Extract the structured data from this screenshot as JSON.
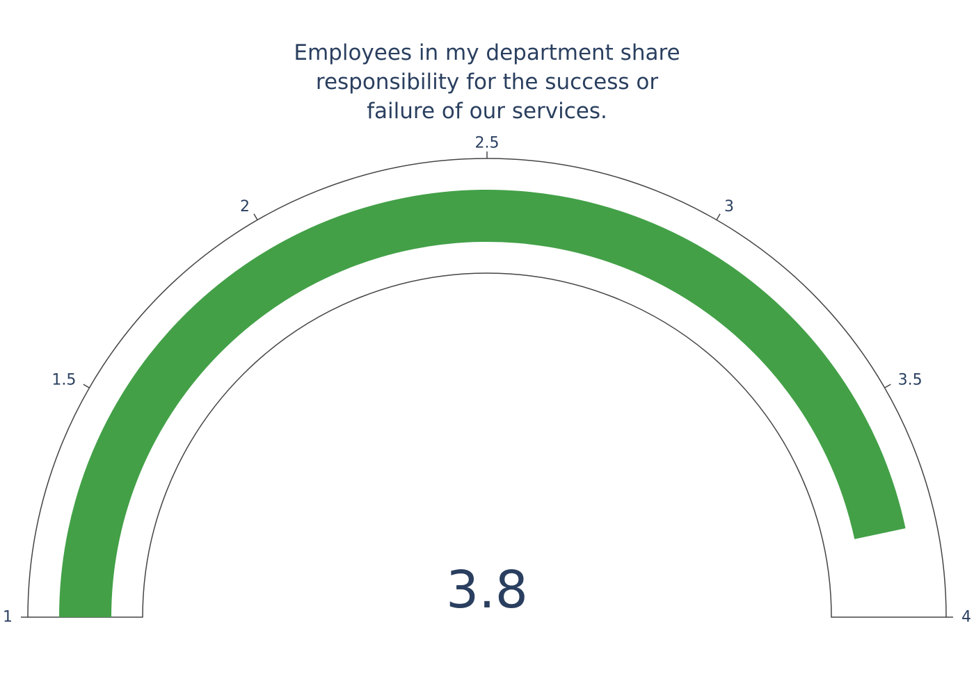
{
  "title_lines": [
    "Employees in my department share",
    "responsibility for the success or",
    "failure of our services."
  ],
  "colors": {
    "text": "#2a3f5f",
    "bar": "#43a047",
    "outline": "#444444",
    "background": "#ffffff"
  },
  "chart_data": {
    "type": "gauge",
    "title": "Employees in my department share responsibility for the success or failure of our services.",
    "value": 3.8,
    "value_label": "3.8",
    "range": [
      1,
      4
    ],
    "ticks": [
      {
        "value": 1,
        "label": "1"
      },
      {
        "value": 1.5,
        "label": "1.5"
      },
      {
        "value": 2,
        "label": "2"
      },
      {
        "value": 2.5,
        "label": "2.5"
      },
      {
        "value": 3,
        "label": "3"
      },
      {
        "value": 3.5,
        "label": "3.5"
      },
      {
        "value": 4,
        "label": "4"
      }
    ]
  }
}
